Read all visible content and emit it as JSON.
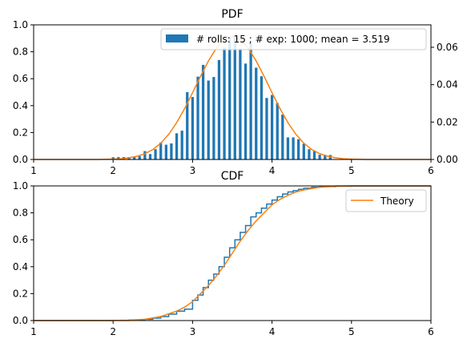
{
  "chart_data": [
    {
      "type": "bar",
      "title": "PDF",
      "xlim": [
        1,
        6
      ],
      "ylim_left": [
        0,
        1
      ],
      "ylim_right": [
        0,
        0.072
      ],
      "x_ticks": [
        "1",
        "2",
        "3",
        "4",
        "5",
        "6"
      ],
      "y_ticks_left": [
        "0.0",
        "0.2",
        "0.4",
        "0.6",
        "0.8",
        "1.0"
      ],
      "y_ticks_right": [
        "0.00",
        "0.02",
        "0.04",
        "0.06"
      ],
      "bar_color": "#1f77b4",
      "curve_color": "#ff7f0e",
      "legend": {
        "label": "# rolls: 15 ; # exp: 1000; mean = 3.519",
        "placement": "upper-right"
      },
      "bar_width": 0.033,
      "bars": {
        "x": [
          2.0,
          2.067,
          2.133,
          2.2,
          2.267,
          2.333,
          2.4,
          2.467,
          2.533,
          2.6,
          2.667,
          2.733,
          2.8,
          2.867,
          2.933,
          3.0,
          3.067,
          3.133,
          3.2,
          3.267,
          3.333,
          3.4,
          3.467,
          3.533,
          3.6,
          3.667,
          3.733,
          3.8,
          3.867,
          3.933,
          4.0,
          4.067,
          4.133,
          4.2,
          4.267,
          4.333,
          4.4,
          4.467,
          4.533,
          4.6,
          4.667,
          4.733
        ],
        "values": [
          0.0012,
          0.0013,
          0.0013,
          0.0013,
          0.0014,
          0.0018,
          0.0045,
          0.0029,
          0.0055,
          0.0091,
          0.0079,
          0.0086,
          0.014,
          0.0154,
          0.036,
          0.0334,
          0.0443,
          0.0506,
          0.0422,
          0.0441,
          0.0532,
          0.0599,
          0.0656,
          0.0663,
          0.0593,
          0.0513,
          0.0623,
          0.0491,
          0.0445,
          0.0329,
          0.0345,
          0.0302,
          0.024,
          0.0118,
          0.0118,
          0.0108,
          0.0084,
          0.0055,
          0.0047,
          0.0025,
          0.0025,
          0.0024
        ]
      },
      "theory": {
        "x": [
          1.0,
          1.2,
          1.4,
          1.6,
          1.8,
          2.0,
          2.1,
          2.2,
          2.3,
          2.4,
          2.5,
          2.6,
          2.7,
          2.8,
          2.9,
          3.0,
          3.1,
          3.2,
          3.3,
          3.4,
          3.5,
          3.6,
          3.7,
          3.8,
          3.9,
          4.0,
          4.1,
          4.2,
          4.3,
          4.4,
          4.5,
          4.6,
          4.7,
          4.8,
          4.9,
          5.0,
          5.2,
          5.4,
          5.6,
          5.8,
          6.0
        ],
        "values": [
          0.0,
          0.0,
          0.0,
          0.0,
          0.0,
          0.0002,
          0.0004,
          0.0009,
          0.0017,
          0.0031,
          0.0053,
          0.0087,
          0.0135,
          0.0197,
          0.0272,
          0.0357,
          0.0445,
          0.0527,
          0.0596,
          0.0642,
          0.0658,
          0.0642,
          0.0596,
          0.0527,
          0.0445,
          0.0357,
          0.0272,
          0.0197,
          0.0135,
          0.0087,
          0.0053,
          0.0031,
          0.0017,
          0.0009,
          0.0004,
          0.0002,
          0.0,
          0.0,
          0.0,
          0.0,
          0.0
        ]
      }
    },
    {
      "type": "line",
      "title": "CDF",
      "xlim": [
        1,
        6
      ],
      "ylim": [
        0,
        1
      ],
      "x_ticks": [
        "1",
        "2",
        "3",
        "4",
        "5",
        "6"
      ],
      "y_ticks": [
        "0.0",
        "0.2",
        "0.4",
        "0.6",
        "0.8",
        "1.0"
      ],
      "empirical_color": "#1f77b4",
      "theory_color": "#ff7f0e",
      "legend": {
        "label": "Theory",
        "placement": "upper-right"
      },
      "empirical": {
        "x": [
          1.0,
          2.0,
          2.2,
          2.4,
          2.5,
          2.6,
          2.7,
          2.8,
          2.9,
          3.0,
          3.067,
          3.133,
          3.2,
          3.267,
          3.333,
          3.4,
          3.467,
          3.533,
          3.6,
          3.667,
          3.733,
          3.8,
          3.867,
          3.933,
          4.0,
          4.067,
          4.133,
          4.2,
          4.267,
          4.333,
          4.4,
          4.5,
          4.6,
          4.8,
          5.0,
          6.0
        ],
        "values": [
          0.0,
          0.001,
          0.004,
          0.01,
          0.018,
          0.03,
          0.048,
          0.07,
          0.085,
          0.15,
          0.19,
          0.245,
          0.3,
          0.345,
          0.4,
          0.47,
          0.54,
          0.6,
          0.655,
          0.705,
          0.77,
          0.8,
          0.835,
          0.865,
          0.895,
          0.92,
          0.94,
          0.955,
          0.965,
          0.975,
          0.983,
          0.99,
          0.995,
          0.999,
          1.0,
          1.0
        ]
      },
      "theory": {
        "x": [
          1.0,
          2.0,
          2.2,
          2.4,
          2.6,
          2.8,
          2.9,
          3.0,
          3.1,
          3.2,
          3.3,
          3.4,
          3.5,
          3.6,
          3.7,
          3.8,
          3.9,
          4.0,
          4.1,
          4.2,
          4.3,
          4.4,
          4.6,
          4.8,
          5.0,
          6.0
        ],
        "values": [
          0.0,
          0.001,
          0.003,
          0.01,
          0.03,
          0.07,
          0.1,
          0.14,
          0.2,
          0.26,
          0.33,
          0.41,
          0.5,
          0.59,
          0.67,
          0.74,
          0.8,
          0.86,
          0.9,
          0.93,
          0.955,
          0.97,
          0.99,
          0.997,
          1.0,
          1.0
        ]
      }
    }
  ]
}
